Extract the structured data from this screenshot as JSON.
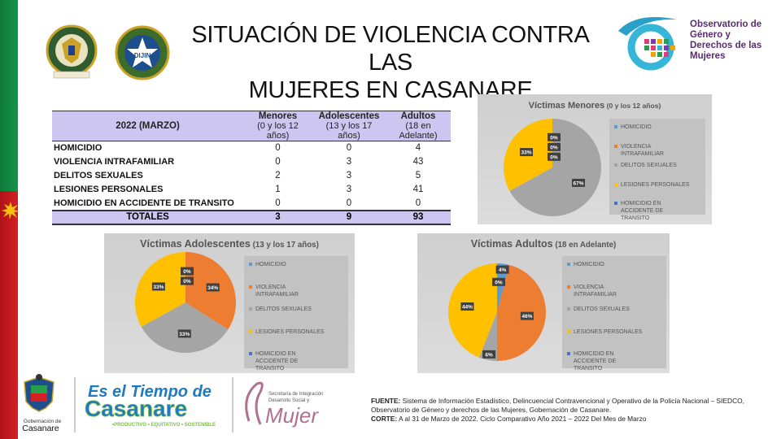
{
  "title": {
    "line1": "SITUACIÓN DE VIOLENCIA CONTRA LAS",
    "line2": "MUJERES EN CASANARE"
  },
  "logos": {
    "police_text": "REPUBLICA DE COLOMBIA · POLICIA NACIONAL · DIOS Y PATRIA",
    "dijin_text": "DIJIN",
    "observatorio": [
      "Observatorio de",
      "Género y",
      "Derechos de las",
      "Mujeres"
    ],
    "gobernacion": [
      "Gobernación de",
      "Casanare"
    ],
    "tiempo": [
      "Es el Tiempo de",
      "Casanare",
      "•PRODUCTIVO • EQUITATIVO • SOSTENIBLE"
    ],
    "secretaria": [
      "Secretaría de Integración",
      "Desarrollo Social y",
      "Mujer"
    ]
  },
  "table": {
    "period": "2022 (MARZO)",
    "headers": [
      {
        "label": "Menores",
        "sub": "(0 y los 12 años)"
      },
      {
        "label": "Adolescentes",
        "sub": "(13 y los 17 años)"
      },
      {
        "label": "Adultos",
        "sub": "(18 en Adelante)"
      }
    ],
    "rows": [
      {
        "label": "HOMICIDIO",
        "values": [
          "0",
          "0",
          "4"
        ]
      },
      {
        "label": "VIOLENCIA INTRAFAMILIAR",
        "values": [
          "0",
          "3",
          "43"
        ]
      },
      {
        "label": "DELITOS SEXUALES",
        "values": [
          "2",
          "3",
          "5"
        ]
      },
      {
        "label": "LESIONES PERSONALES",
        "values": [
          "1",
          "3",
          "41"
        ]
      },
      {
        "label": "HOMICIDIO EN ACCIDENTE DE TRANSITO",
        "values": [
          "0",
          "0",
          "0"
        ]
      }
    ],
    "totals": {
      "label": "TOTALES",
      "values": [
        "3",
        "9",
        "93"
      ]
    }
  },
  "chart_data": [
    {
      "type": "pie",
      "title": "Víctimas Menores",
      "subtitle": "(0 y los 12 años)",
      "categories": [
        "HOMICIDIO",
        "VIOLENCIA INTRAFAMILIAR",
        "DELITOS SEXUALES",
        "LESIONES PERSONALES",
        "HOMICIDIO EN ACCIDENTE DE TRANSITO"
      ],
      "values": [
        0,
        0,
        67,
        33,
        0
      ],
      "data_labels": [
        "0%",
        "0%",
        "67%",
        "33%",
        "0%"
      ],
      "colors": [
        "#5b9bd5",
        "#ed7d31",
        "#a5a5a5",
        "#ffc000",
        "#4472c4"
      ],
      "legend": "right"
    },
    {
      "type": "pie",
      "title": "Víctimas Adolescentes",
      "subtitle": "(13 y los 17 años)",
      "categories": [
        "HOMICIDIO",
        "VIOLENCIA INTRAFAMILIAR",
        "DELITOS SEXUALES",
        "LESIONES PERSONALES",
        "HOMICIDIO EN ACCIDENTE DE TRANSITO"
      ],
      "values": [
        0,
        34,
        33,
        33,
        0
      ],
      "data_labels": [
        "0%",
        "34%",
        "33%",
        "33%",
        "0%"
      ],
      "colors": [
        "#5b9bd5",
        "#ed7d31",
        "#a5a5a5",
        "#ffc000",
        "#4472c4"
      ],
      "legend": "right"
    },
    {
      "type": "pie",
      "title": "Víctimas Adultos",
      "subtitle": "(18 en Adelante)",
      "categories": [
        "HOMICIDIO",
        "VIOLENCIA INTRAFAMILIAR",
        "DELITOS SEXUALES",
        "LESIONES PERSONALES",
        "HOMICIDIO EN ACCIDENTE DE TRANSITO"
      ],
      "values": [
        4,
        46,
        6,
        44,
        0
      ],
      "data_labels": [
        "4%",
        "46%",
        "6%",
        "44%",
        "0%"
      ],
      "colors": [
        "#5b9bd5",
        "#ed7d31",
        "#a5a5a5",
        "#ffc000",
        "#4472c4"
      ],
      "legend": "right"
    }
  ],
  "fuente": {
    "label1": "FUENTE:",
    "text1": "Sistema de Información Estadístico, Delincuencial Contravencional y Operativo de la Policía Nacional – SIEDCO, Observatorio de Género y derechos de las Mujeres, Gobernación de Casanare.",
    "label2": "CORTE:",
    "text2": "A al 31 de Marzo de 2022. Ciclo Comparativo Año 2021 – 2022 Del Mes de Marzo"
  },
  "colors": {
    "table_header": "#cdc6f0",
    "flag_green": "#169448",
    "flag_red": "#d61f24",
    "obs_purple": "#5a2b73"
  }
}
